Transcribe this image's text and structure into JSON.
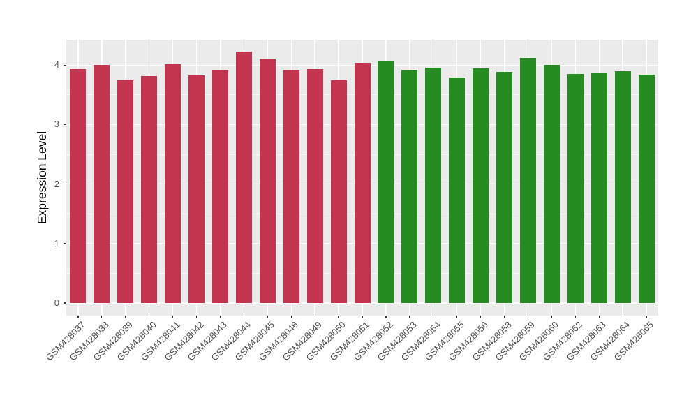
{
  "figure": {
    "title": "",
    "ylabel": "Expression Level",
    "background_color": "#FFFFFF",
    "panel_color": "#EBEBEB",
    "gridline_color": "#FFFFFF",
    "tick_label_color": "#4D4D4D",
    "tick_mark_color": "#333333"
  },
  "chart_data": {
    "type": "bar",
    "title": "",
    "xlabel": "",
    "ylabel": "Expression Level",
    "categories": [
      "GSM428037",
      "GSM428038",
      "GSM428039",
      "GSM428040",
      "GSM428041",
      "GSM428042",
      "GSM428043",
      "GSM428044",
      "GSM428045",
      "GSM428046",
      "GSM428049",
      "GSM428050",
      "GSM428051",
      "GSM428052",
      "GSM428053",
      "GSM428054",
      "GSM428055",
      "GSM428056",
      "GSM428058",
      "GSM428059",
      "GSM428060",
      "GSM428062",
      "GSM428063",
      "GSM428064",
      "GSM428065"
    ],
    "values": [
      3.93,
      4.0,
      3.74,
      3.82,
      4.01,
      3.83,
      3.92,
      4.22,
      4.11,
      3.92,
      3.93,
      3.74,
      4.04,
      4.06,
      3.92,
      3.96,
      3.79,
      3.94,
      3.89,
      4.12,
      4.0,
      3.85,
      3.87,
      3.9,
      3.84
    ],
    "colors": [
      "#C3344F",
      "#C3344F",
      "#C3344F",
      "#C3344F",
      "#C3344F",
      "#C3344F",
      "#C3344F",
      "#C3344F",
      "#C3344F",
      "#C3344F",
      "#C3344F",
      "#C3344F",
      "#C3344F",
      "#268C22",
      "#268C22",
      "#268C22",
      "#268C22",
      "#268C22",
      "#268C22",
      "#268C22",
      "#268C22",
      "#268C22",
      "#268C22",
      "#268C22",
      "#268C22"
    ],
    "group_colors": {
      "left_group": "#C3344F",
      "right_group": "#268C22"
    },
    "yticks": [
      0,
      1,
      2,
      3,
      4
    ],
    "yticks_minor": [
      0.5,
      1.5,
      2.5,
      3.5
    ],
    "ylim": [
      -0.21,
      4.42
    ],
    "grid": "white major and minor horizontal lines, white vertical line per category, on grey panel",
    "legend": "none",
    "x_label_angle": 45
  }
}
